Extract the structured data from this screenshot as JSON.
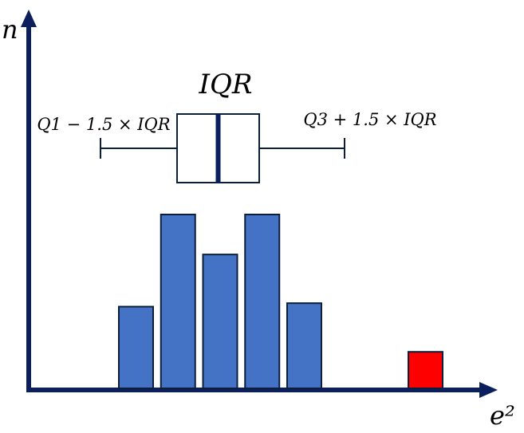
{
  "labels": {
    "y_axis": "n",
    "x_axis": "e²",
    "iqr": "IQR",
    "lower_fence": "Q1 − 1.5 × IQR",
    "upper_fence": "Q3 + 1.5 × IQR"
  },
  "bars": {
    "normal_relative_heights": [
      0.47,
      1.0,
      0.77,
      1.0,
      0.49
    ],
    "outlier_relative_height": 0.21
  },
  "colors": {
    "axis": "#0b1f5c",
    "bar_fill": "#4472c4",
    "bar_stroke": "#0b1f3a",
    "outlier_fill": "#ff0000",
    "box_stroke": "#0b1f3a",
    "median": "#0b1f5c"
  }
}
